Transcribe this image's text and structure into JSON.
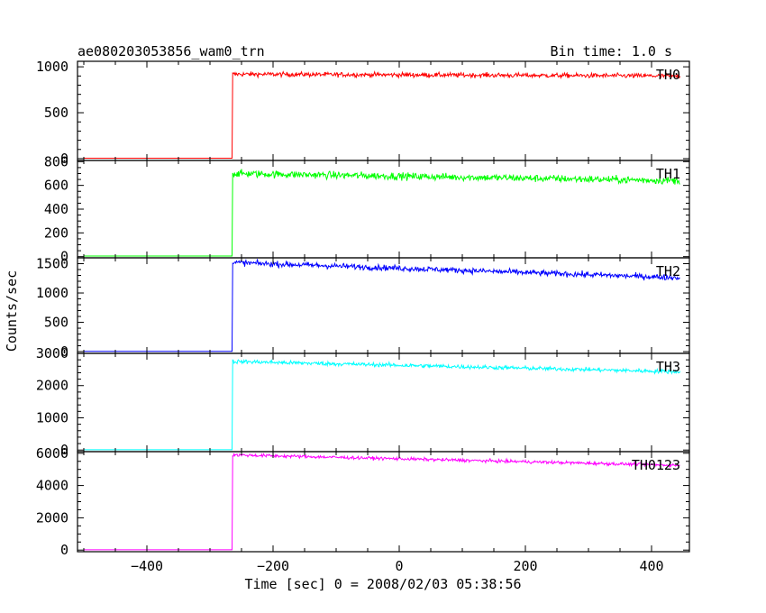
{
  "header": {
    "title": "ae080203053856_wam0_trn",
    "bin_time": "Bin time: 1.0 s"
  },
  "chart_data": {
    "type": "line",
    "xlabel": "Time [sec] 0 = 2008/02/03 05:38:56",
    "ylabel": "Counts/sec",
    "xlim": [
      -510,
      460
    ],
    "x_ticks": [
      -400,
      -200,
      0,
      200,
      400
    ],
    "x_tick_labels": [
      "−400",
      "−200",
      "0",
      "200",
      "400"
    ],
    "data_range": [
      -500,
      445
    ],
    "onset_time": -265,
    "panels": [
      {
        "name": "TH0",
        "color": "#ff0000",
        "ylim": [
          -20,
          1060
        ],
        "ticks": [
          0,
          500,
          1000
        ],
        "tick_labels": [
          "0",
          "500",
          "1000"
        ],
        "baseline": 5,
        "start_level": 920,
        "end_level": 900,
        "noise": 18
      },
      {
        "name": "TH1",
        "color": "#00ff00",
        "ylim": [
          -10,
          810
        ],
        "ticks": [
          0,
          200,
          400,
          600,
          800
        ],
        "tick_labels": [
          "0",
          "200",
          "400",
          "600",
          "800"
        ],
        "baseline": 5,
        "start_level": 700,
        "end_level": 640,
        "noise": 22
      },
      {
        "name": "TH2",
        "color": "#0000ff",
        "ylim": [
          -30,
          1600
        ],
        "ticks": [
          0,
          500,
          1000,
          1500
        ],
        "tick_labels": [
          "0",
          "500",
          "1000",
          "1500"
        ],
        "baseline": 5,
        "start_level": 1520,
        "end_level": 1260,
        "noise": 35
      },
      {
        "name": "TH3",
        "color": "#00ffff",
        "ylim": [
          -50,
          3000
        ],
        "ticks": [
          0,
          1000,
          2000,
          3000
        ],
        "tick_labels": [
          "0",
          "1000",
          "2000",
          "3000"
        ],
        "baseline": 10,
        "start_level": 2750,
        "end_level": 2430,
        "noise": 45
      },
      {
        "name": "TH0123",
        "color": "#ff00ff",
        "ylim": [
          -100,
          6100
        ],
        "ticks": [
          0,
          2000,
          4000,
          6000
        ],
        "tick_labels": [
          "0",
          "2000",
          "4000",
          "6000"
        ],
        "baseline": 20,
        "start_level": 5900,
        "end_level": 5250,
        "noise": 70
      }
    ]
  }
}
